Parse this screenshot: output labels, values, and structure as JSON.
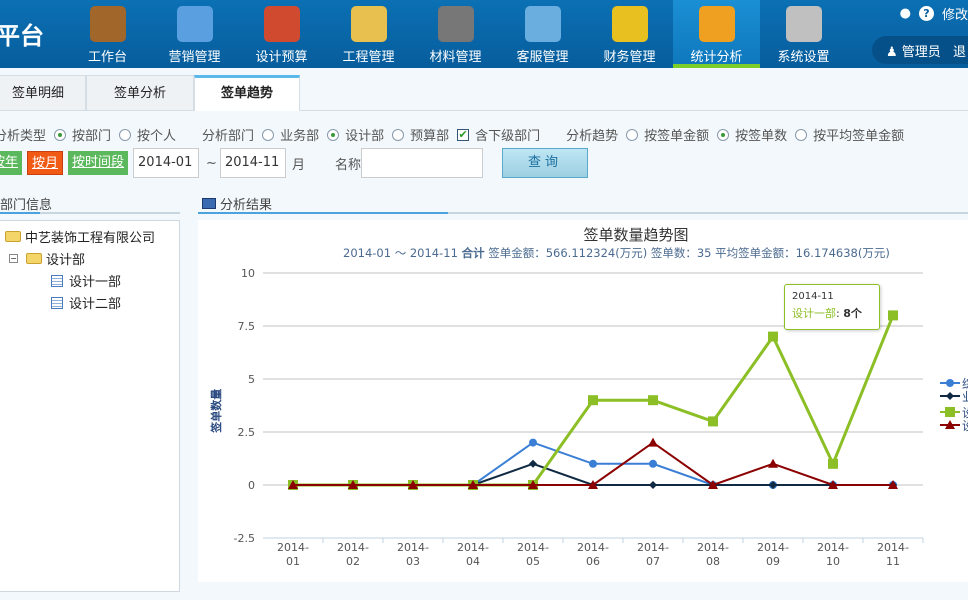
{
  "brand": "平台",
  "nav": [
    {
      "label": "工作台",
      "icon": "book-icon",
      "color": "#a0662a"
    },
    {
      "label": "营销管理",
      "icon": "ruler-triangle-icon",
      "color": "#5aa0e0"
    },
    {
      "label": "设计预算",
      "icon": "pencil-ruler-icon",
      "color": "#d04a30"
    },
    {
      "label": "工程管理",
      "icon": "barrier-icon",
      "color": "#e8c050"
    },
    {
      "label": "材料管理",
      "icon": "warehouse-icon",
      "color": "#777777"
    },
    {
      "label": "客服管理",
      "icon": "support-agent-icon",
      "color": "#6aaee0"
    },
    {
      "label": "财务管理",
      "icon": "coins-icon",
      "color": "#e8c020"
    },
    {
      "label": "统计分析",
      "icon": "bar-chart-icon",
      "color": "#f0a020",
      "active": true
    },
    {
      "label": "系统设置",
      "icon": "tools-icon",
      "color": "#c0c0c0"
    }
  ],
  "topright": {
    "modify": "修改"
  },
  "user": {
    "name": "管理员",
    "extra": "退"
  },
  "tabs": [
    {
      "label": "签单明细"
    },
    {
      "label": "签单分析"
    },
    {
      "label": "签单趋势",
      "active": true
    }
  ],
  "filters": {
    "type_label": "分析类型",
    "type_options": [
      "按部门",
      "按个人"
    ],
    "type_selected": 0,
    "dept_label": "分析部门",
    "dept_options": [
      "业务部",
      "设计部",
      "预算部"
    ],
    "dept_selected": 1,
    "include_sub": "含下级部门",
    "include_sub_checked": true,
    "trend_label": "分析趋势",
    "trend_options": [
      "按签单金额",
      "按签单数",
      "按平均签单金额"
    ],
    "trend_selected": 1,
    "period_buttons": [
      "按年",
      "按月",
      "按时间段"
    ],
    "period_active": 1,
    "from": "2014-01",
    "tilde": "~",
    "to": "2014-11",
    "unit": "月",
    "name_label": "名称",
    "name_value": "",
    "query": "查询"
  },
  "dept_panel": {
    "title": "部门信息",
    "root": "中艺装饰工程有限公司",
    "child": "设计部",
    "leaves": [
      "设计一部",
      "设计二部"
    ]
  },
  "result_panel": {
    "title": "分析结果"
  },
  "tooltip": {
    "date": "2014-11",
    "series": "设计一部",
    "value": "8个"
  },
  "chart_data": {
    "type": "line",
    "title": "签单数量趋势图",
    "subtitle": {
      "range": "2014-01 ～ 2014-11",
      "total_label": "合计",
      "rest": "签单金额：566.112324(万元) 签单数：35 平均签单金额：16.174638(万元)"
    },
    "ylabel": "签单数量",
    "ylim": [
      -2.5,
      10
    ],
    "yticks": [
      "10",
      "7.5",
      "5",
      "2.5",
      "0",
      "-2.5"
    ],
    "categories": [
      "2014-\n01",
      "2014-\n02",
      "2014-\n03",
      "2014-\n04",
      "2014-\n05",
      "2014-\n06",
      "2014-\n07",
      "2014-\n08",
      "2014-\n09",
      "2014-\n10",
      "2014-\n11"
    ],
    "grid": true,
    "legend": "right",
    "series": [
      {
        "name": "综",
        "color": "#3a7fd5",
        "marker": "circle",
        "values": [
          0,
          0,
          0,
          0,
          2,
          1,
          1,
          0,
          0,
          0,
          0
        ]
      },
      {
        "name": "业",
        "color": "#102a44",
        "marker": "diamond",
        "values": [
          0,
          0,
          0,
          0,
          1,
          0,
          0,
          0,
          0,
          0,
          0
        ]
      },
      {
        "name": "设",
        "color": "#8cbf26",
        "marker": "square",
        "values": [
          0,
          0,
          0,
          0,
          0,
          4,
          4,
          3,
          7,
          1,
          8
        ]
      },
      {
        "name": "设",
        "color": "#8b0000",
        "marker": "triangle",
        "values": [
          0,
          0,
          0,
          0,
          0,
          0,
          2,
          0,
          1,
          0,
          0
        ]
      }
    ]
  }
}
